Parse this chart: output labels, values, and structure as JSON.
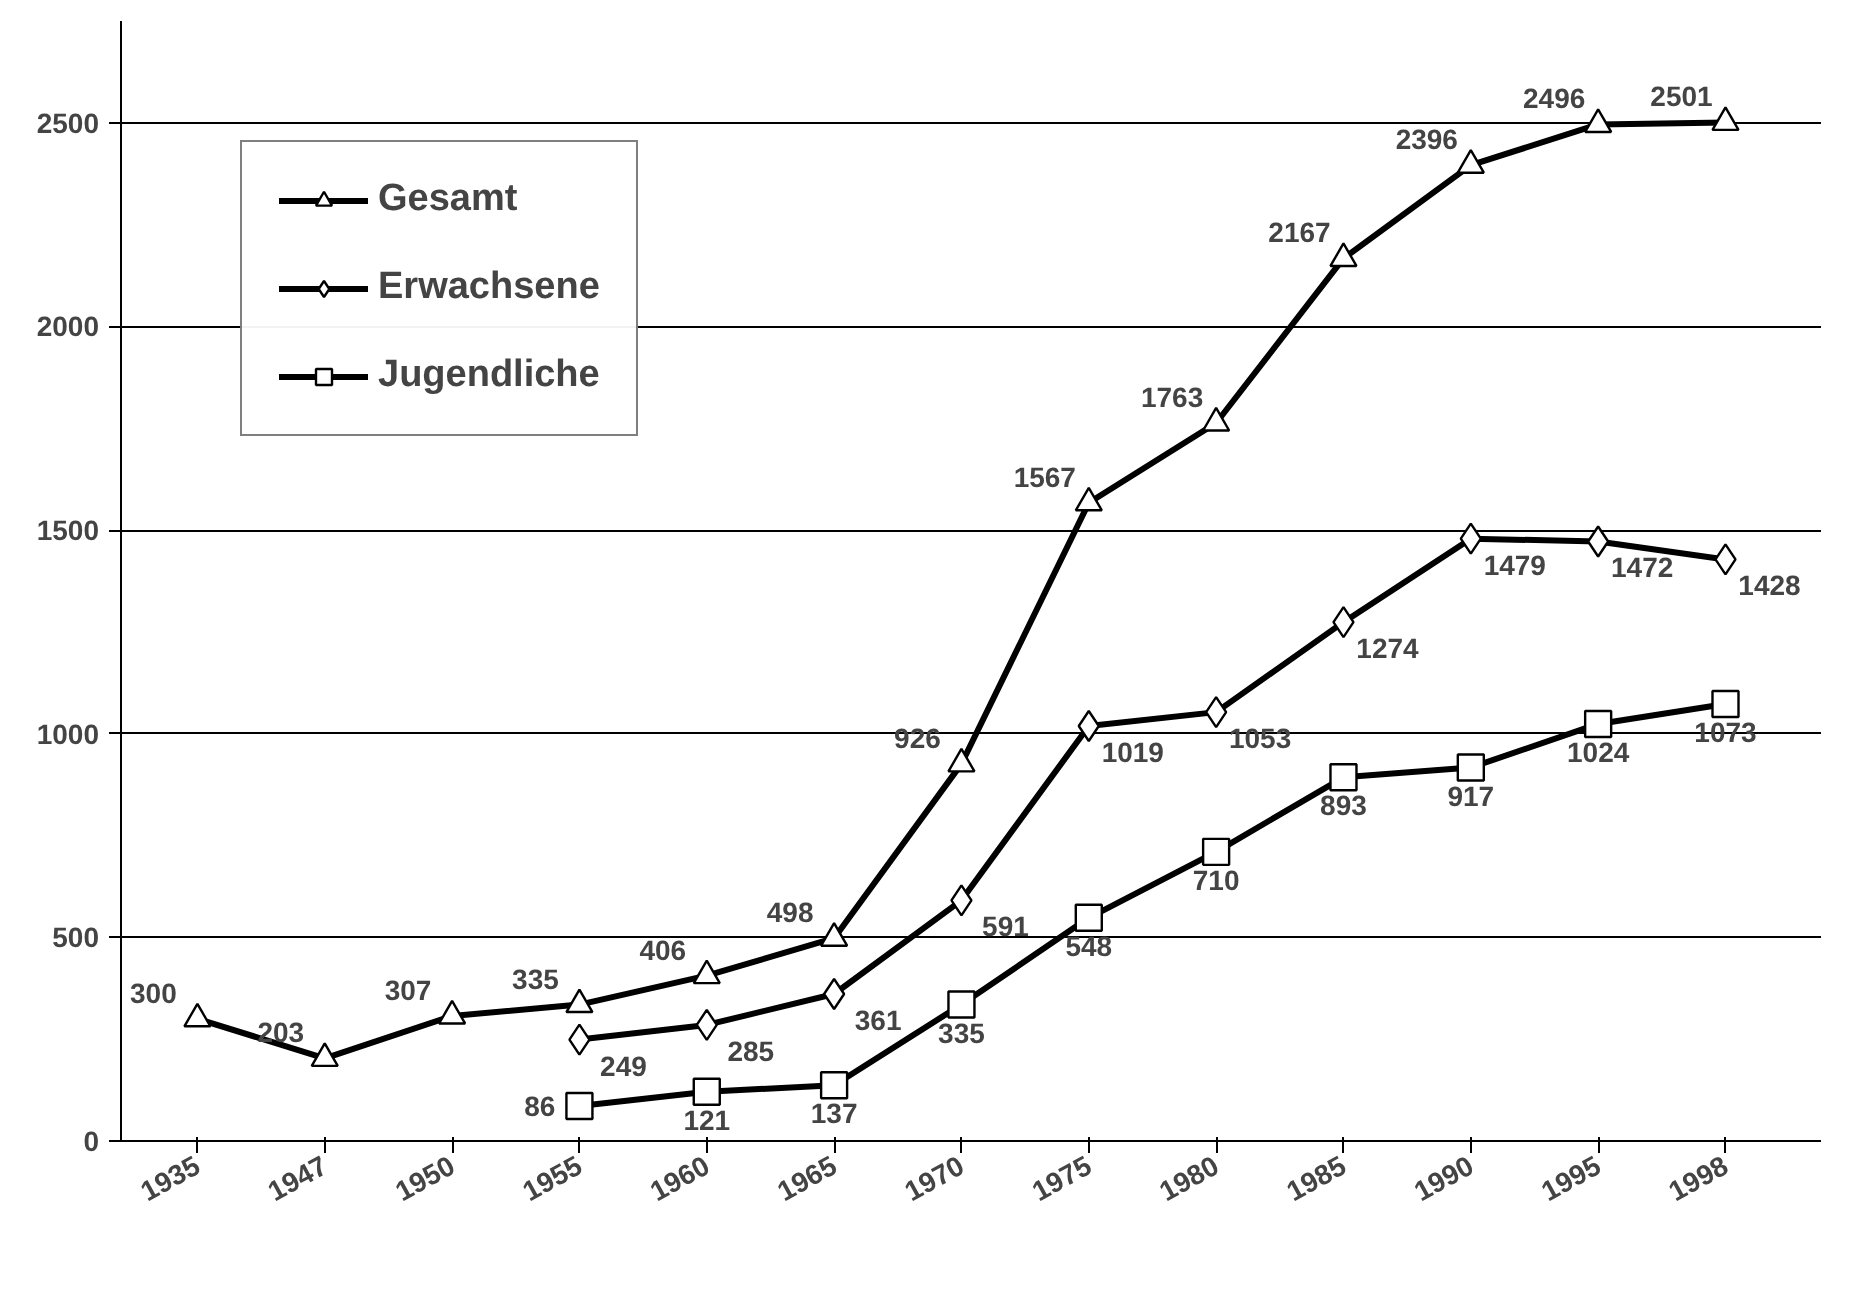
{
  "chart_data": {
    "type": "line",
    "categories": [
      "1935",
      "1947",
      "1950",
      "1955",
      "1960",
      "1965",
      "1970",
      "1975",
      "1980",
      "1985",
      "1990",
      "1995",
      "1998"
    ],
    "series": [
      {
        "name": "Gesamt",
        "color": "#000000",
        "marker": "triangle",
        "values": [
          300,
          203,
          307,
          335,
          406,
          498,
          926,
          1567,
          1763,
          2167,
          2396,
          2496,
          2501
        ]
      },
      {
        "name": "Erwachsene",
        "color": "#000000",
        "marker": "diamond",
        "values": [
          null,
          null,
          null,
          249,
          285,
          361,
          591,
          1019,
          1053,
          1274,
          1479,
          1472,
          1428
        ]
      },
      {
        "name": "Jugendliche",
        "color": "#000000",
        "marker": "square",
        "values": [
          null,
          null,
          null,
          86,
          121,
          137,
          335,
          548,
          710,
          893,
          917,
          1024,
          1073
        ]
      }
    ],
    "ylim": [
      0,
      2750
    ],
    "yticks": [
      0,
      500,
      1000,
      1500,
      2000,
      2500
    ],
    "grid": "y",
    "legend": "top left",
    "data_labels": true,
    "line_style": "solid"
  }
}
